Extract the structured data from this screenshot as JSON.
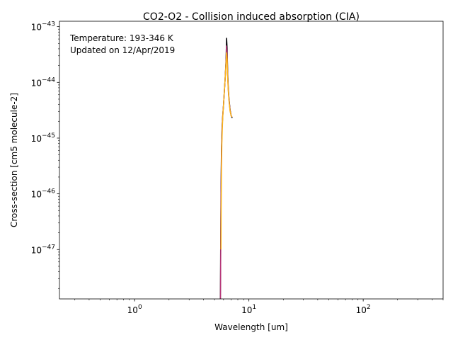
{
  "chart_data": {
    "type": "line",
    "title": "CO2-O2 - Collision induced absorption (CIA)",
    "xlabel": "Wavelength [um]",
    "ylabel": "Cross-section [cm5 molecule-2]",
    "xscale": "log",
    "yscale": "log",
    "xlim": [
      0.22,
      500
    ],
    "ylim": [
      1.3e-48,
      1.25e-43
    ],
    "grid": false,
    "annotations": [
      "Temperature: 193-346 K",
      "Updated on 12/Apr/2019"
    ],
    "x_ticks": [
      {
        "value": 1,
        "base": "10",
        "exp": "0"
      },
      {
        "value": 10,
        "base": "10",
        "exp": "1"
      },
      {
        "value": 100,
        "base": "10",
        "exp": "2"
      }
    ],
    "y_ticks": [
      {
        "value": 1e-47,
        "base": "10",
        "exp": "−47"
      },
      {
        "value": 1e-46,
        "base": "10",
        "exp": "−46"
      },
      {
        "value": 1e-45,
        "base": "10",
        "exp": "−45"
      },
      {
        "value": 1e-44,
        "base": "10",
        "exp": "−44"
      },
      {
        "value": 1e-43,
        "base": "10",
        "exp": "−43"
      }
    ],
    "series": [
      {
        "color": "#000004",
        "x": [
          5.63,
          5.66,
          5.7,
          5.75,
          5.82,
          5.9,
          6.0,
          6.1,
          6.2,
          6.3,
          6.38,
          6.45,
          6.52,
          6.6,
          6.7,
          6.85,
          7.0,
          7.15
        ],
        "y": [
          1.3e-48,
          1e-47,
          1e-46,
          6e-46,
          1.5e-45,
          2.5e-45,
          4e-45,
          7e-45,
          1.2e-44,
          2.4e-44,
          6.2e-44,
          4e-44,
          1.5e-44,
          8e-45,
          5e-45,
          3.2e-45,
          2.5e-45,
          2.3e-45
        ]
      },
      {
        "color": "#b73779",
        "x": [
          5.64,
          5.67,
          5.71,
          5.76,
          5.83,
          5.9,
          6.0,
          6.1,
          6.2,
          6.3,
          6.38,
          6.45,
          6.52,
          6.6,
          6.7,
          6.85,
          7.0,
          7.12
        ],
        "y": [
          1.3e-48,
          1e-47,
          1e-46,
          6e-46,
          1.5e-45,
          2.5e-45,
          4e-45,
          7e-45,
          1.2e-44,
          2.2e-44,
          4.5e-44,
          3.2e-44,
          1.3e-44,
          7.5e-45,
          4.8e-45,
          3.1e-45,
          2.5e-45,
          2.4e-45
        ]
      },
      {
        "color": "#fcb519",
        "x": [
          5.7,
          5.72,
          5.76,
          5.8,
          5.86,
          5.92,
          6.0,
          6.1,
          6.2,
          6.3,
          6.38,
          6.45,
          6.52,
          6.6,
          6.7,
          6.85,
          7.0,
          7.1
        ],
        "y": [
          1e-47,
          5e-47,
          3e-46,
          8e-46,
          1.6e-45,
          2.6e-45,
          4e-45,
          7e-45,
          1.2e-44,
          2.1e-44,
          3.4e-44,
          2.6e-44,
          1.2e-44,
          7e-45,
          4.6e-45,
          3e-45,
          2.5e-45,
          2.4e-45
        ]
      }
    ]
  }
}
